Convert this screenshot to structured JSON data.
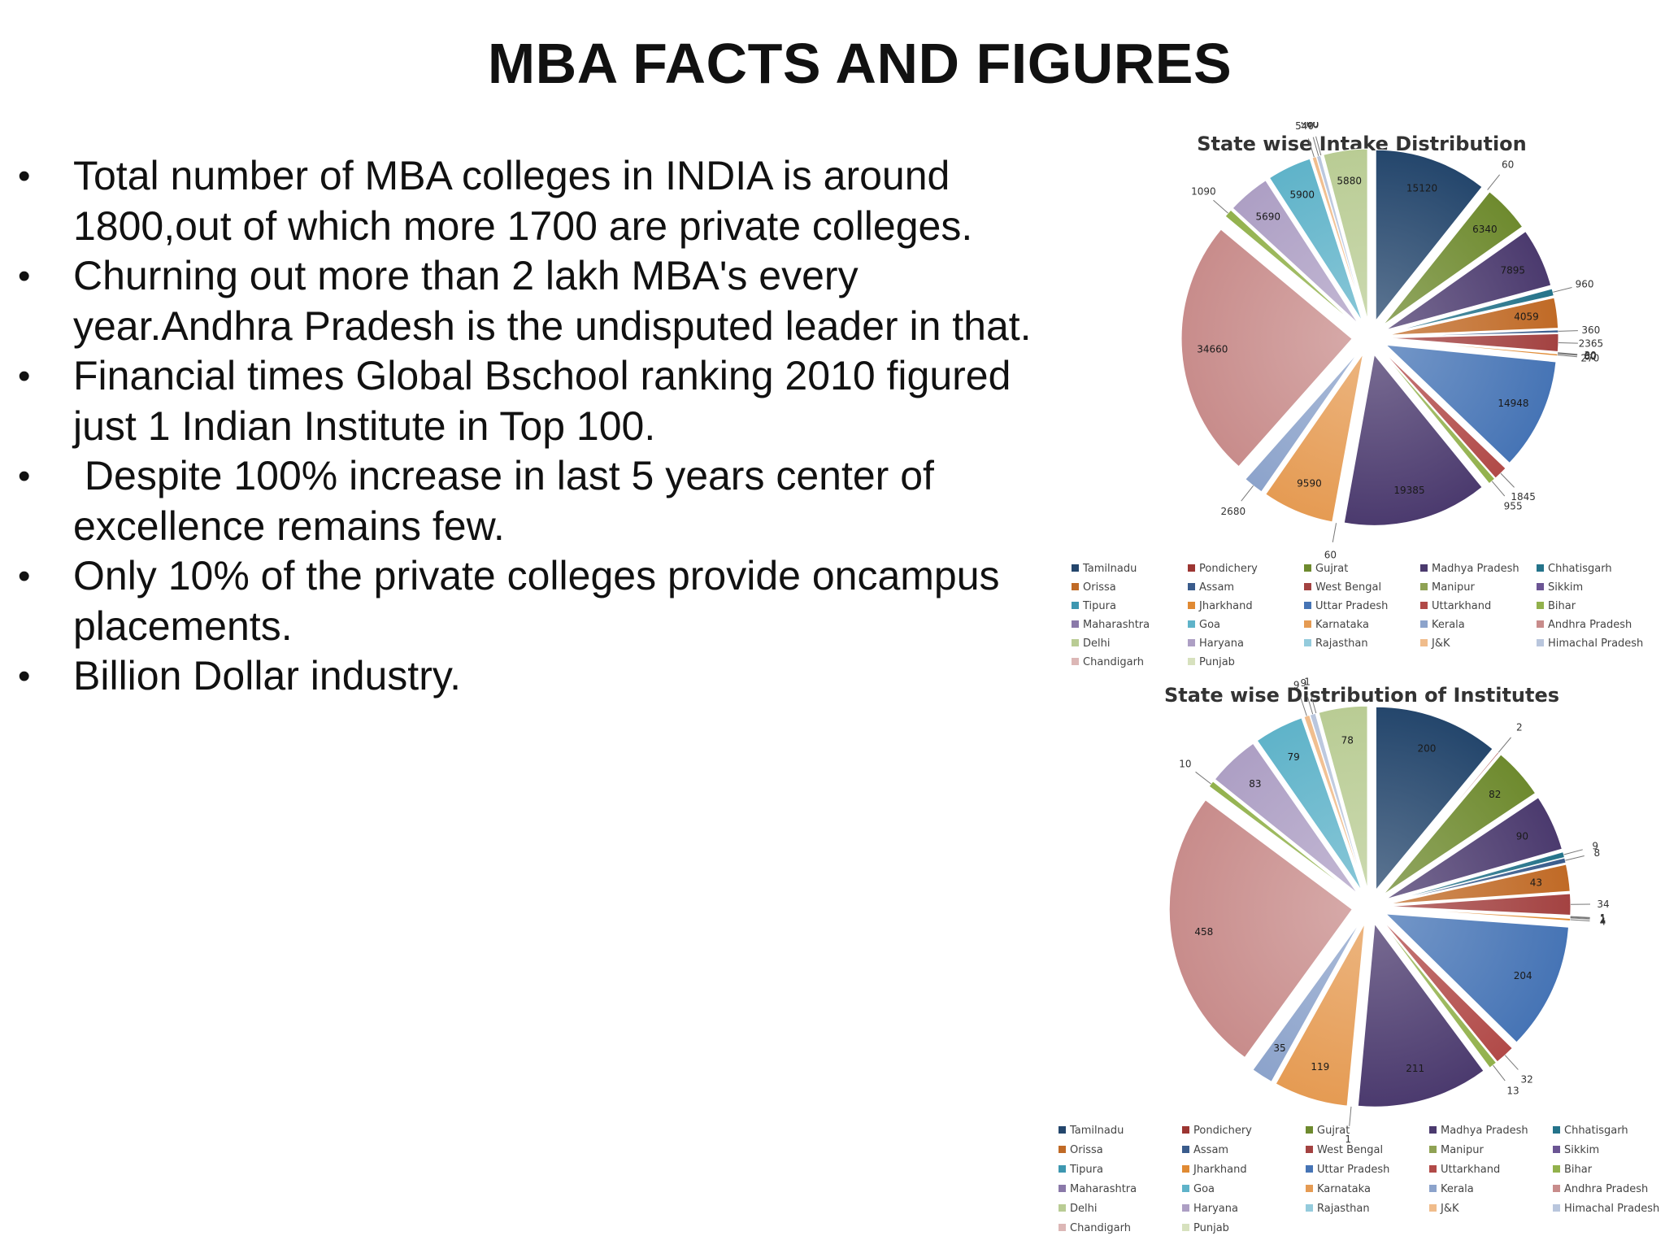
{
  "slide": {
    "title": "MBA FACTS AND FIGURES",
    "bullets": [
      "Total number of MBA colleges in INDIA is around 1800,out of which more 1700 are private colleges.",
      "Churning out more than 2 lakh MBA's every year.Andhra Pradesh is the undisputed leader in that.",
      "Financial times Global Bschool ranking 2010 figured just 1 Indian Institute in Top 100.",
      " Despite 100% increase in last 5 years center of excellence remains few.",
      "Only 10% of the private colleges provide oncampus placements.",
      "Billion Dollar industry."
    ],
    "bullet_glyph": "•"
  },
  "colors": {
    "Tamilnadu": "#24466c",
    "Pondichery": "#9c3532",
    "Gujrat": "#6e8a2e",
    "Madhya Pradesh": "#4b3a6e",
    "Chhatisgarh": "#24738a",
    "Orissa": "#c06a26",
    "Assam": "#3a5c8c",
    "West Bengal": "#a34241",
    "Manipur": "#8fa254",
    "Sikkim": "#6b5594",
    "Tipura": "#3d97b0",
    "Jharkhand": "#e08a33",
    "Uttar Pradesh": "#4674b5",
    "Uttarkhand": "#b14a48",
    "Bihar": "#92b14c",
    "Maharashtra": "#8a79a9",
    "Goa": "#5fb3c9",
    "Karnataka": "#e59b53",
    "Kerala": "#8ca3cb",
    "Andhra Pradesh": "#c88c8b",
    "Delhi": "#b9cc94",
    "Haryana": "#ad9fc4",
    "Rajasthan": "#94cbdc",
    "J&K": "#f0bc8b",
    "Himachal Pradesh": "#b9c6dd",
    "Chandigarh": "#dcb7b6",
    "Punjab": "#d7e1be"
  },
  "chart_data": [
    {
      "type": "pie",
      "title": "State wise Intake Distribution",
      "legend_position": "bottom",
      "legend": [
        "Tamilnadu",
        "Pondichery",
        "Gujrat",
        "Madhya Pradesh",
        "Chhatisgarh",
        "Orissa",
        "Assam",
        "West Bengal",
        "Manipur",
        "Sikkim",
        "Tipura",
        "Jharkhand",
        "Uttar Pradesh",
        "Uttarkhand",
        "Bihar",
        "Maharashtra",
        "Goa",
        "Karnataka",
        "Kerala",
        "Andhra Pradesh",
        "Delhi",
        "Haryana",
        "Rajasthan",
        "J&K",
        "Himachal Pradesh",
        "Chandigarh",
        "Punjab"
      ],
      "slices": [
        {
          "name": "Tamilnadu",
          "value": 15120,
          "label": "15120"
        },
        {
          "name": "Pondichery",
          "value": 60,
          "label": "60"
        },
        {
          "name": "Gujrat",
          "value": 6340,
          "label": "6340"
        },
        {
          "name": "Madhya Pradesh",
          "value": 7895,
          "label": "7895"
        },
        {
          "name": "Chhatisgarh",
          "value": 960,
          "label": "960"
        },
        {
          "name": "Orissa",
          "value": 4059,
          "label": "4059"
        },
        {
          "name": "Assam",
          "value": 360,
          "label": "360"
        },
        {
          "name": "West Bengal",
          "value": 2365,
          "label": "2365"
        },
        {
          "name": "Manipur",
          "value": 30,
          "label": "30"
        },
        {
          "name": "Sikkim",
          "value": 60,
          "label": "60"
        },
        {
          "name": "Tipura",
          "value": 60,
          "label": "60"
        },
        {
          "name": "Jharkhand",
          "value": 270,
          "label": "270"
        },
        {
          "name": "Uttar Pradesh",
          "value": 14948,
          "label": "14948"
        },
        {
          "name": "Uttarkhand",
          "value": 1845,
          "label": "1845"
        },
        {
          "name": "Bihar",
          "value": 955,
          "label": "955"
        },
        {
          "name": "Madhya Pradesh",
          "value": 19385,
          "label": "19385"
        },
        {
          "name": "Kerala",
          "value": 60,
          "label": "60"
        },
        {
          "name": "Karnataka",
          "value": 9590,
          "label": "9590"
        },
        {
          "name": "Kerala",
          "value": 2680,
          "label": "2680"
        },
        {
          "name": "Andhra Pradesh",
          "value": 34660,
          "label": "34660"
        },
        {
          "name": "Bihar",
          "value": 1090,
          "label": "1090"
        },
        {
          "name": "Haryana",
          "value": 5690,
          "label": "5690"
        },
        {
          "name": "Goa",
          "value": 5900,
          "label": "5900"
        },
        {
          "name": "J&K",
          "value": 540,
          "label": "540"
        },
        {
          "name": "Himachal Pradesh",
          "value": 540,
          "label": "540"
        },
        {
          "name": "Chandigarh",
          "value": 60,
          "label": "60"
        },
        {
          "name": "Delhi",
          "value": 5880,
          "label": "5880"
        }
      ]
    },
    {
      "type": "pie",
      "title": "State wise Distribution of Institutes",
      "legend_position": "bottom",
      "legend": [
        "Tamilnadu",
        "Pondichery",
        "Gujrat",
        "Madhya Pradesh",
        "Chhatisgarh",
        "Orissa",
        "Assam",
        "West Bengal",
        "Manipur",
        "Sikkim",
        "Tipura",
        "Jharkhand",
        "Uttar Pradesh",
        "Uttarkhand",
        "Bihar",
        "Maharashtra",
        "Goa",
        "Karnataka",
        "Kerala",
        "Andhra Pradesh",
        "Delhi",
        "Haryana",
        "Rajasthan",
        "J&K",
        "Himachal Pradesh",
        "Chandigarh",
        "Punjab"
      ],
      "slices": [
        {
          "name": "Tamilnadu",
          "value": 200,
          "label": "200"
        },
        {
          "name": "Pondichery",
          "value": 2,
          "label": "2"
        },
        {
          "name": "Gujrat",
          "value": 82,
          "label": "82"
        },
        {
          "name": "Madhya Pradesh",
          "value": 90,
          "label": "90"
        },
        {
          "name": "Chhatisgarh",
          "value": 9,
          "label": "9"
        },
        {
          "name": "Assam",
          "value": 8,
          "label": "8"
        },
        {
          "name": "Orissa",
          "value": 43,
          "label": "43"
        },
        {
          "name": "West Bengal",
          "value": 34,
          "label": "34"
        },
        {
          "name": "Manipur",
          "value": 1,
          "label": "1"
        },
        {
          "name": "Sikkim",
          "value": 1,
          "label": "1"
        },
        {
          "name": "Tipura",
          "value": 1,
          "label": "1"
        },
        {
          "name": "Jharkhand",
          "value": 4,
          "label": "4"
        },
        {
          "name": "Uttar Pradesh",
          "value": 204,
          "label": "204"
        },
        {
          "name": "Uttarkhand",
          "value": 32,
          "label": "32"
        },
        {
          "name": "Bihar",
          "value": 13,
          "label": "13"
        },
        {
          "name": "Madhya Pradesh",
          "value": 211,
          "label": "211"
        },
        {
          "name": "Kerala",
          "value": 1,
          "label": "1"
        },
        {
          "name": "Karnataka",
          "value": 119,
          "label": "119"
        },
        {
          "name": "Kerala",
          "value": 35,
          "label": "35"
        },
        {
          "name": "Andhra Pradesh",
          "value": 458,
          "label": "458"
        },
        {
          "name": "Bihar",
          "value": 10,
          "label": "10"
        },
        {
          "name": "Haryana",
          "value": 83,
          "label": "83"
        },
        {
          "name": "Goa",
          "value": 79,
          "label": "79"
        },
        {
          "name": "J&K",
          "value": 9,
          "label": "9"
        },
        {
          "name": "Himachal Pradesh",
          "value": 9,
          "label": "9"
        },
        {
          "name": "Chandigarh",
          "value": 1,
          "label": "1"
        },
        {
          "name": "Delhi",
          "value": 78,
          "label": "78"
        }
      ]
    }
  ]
}
